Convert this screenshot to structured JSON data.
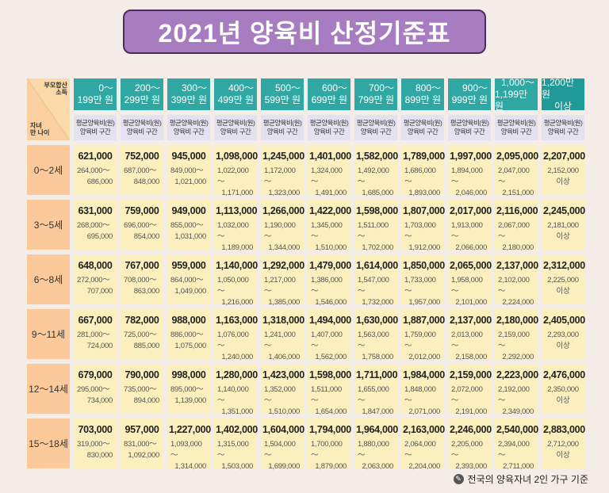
{
  "title": "2021년 양육비 산정기준표",
  "corner": {
    "top": [
      "부모합산",
      "소득"
    ],
    "bottom": [
      "자녀",
      "만 나이"
    ]
  },
  "income_brackets": [
    [
      "0～",
      "199만 원"
    ],
    [
      "200～",
      "299만 원"
    ],
    [
      "300～",
      "399만 원"
    ],
    [
      "400～",
      "499만 원"
    ],
    [
      "500～",
      "599만 원"
    ],
    [
      "600～",
      "699만 원"
    ],
    [
      "700～",
      "799만 원"
    ],
    [
      "800～",
      "899만 원"
    ],
    [
      "900～",
      "999만 원"
    ],
    [
      "1,000～",
      "1,199만 원"
    ],
    [
      "1,200만 원",
      "이상"
    ]
  ],
  "subheader": [
    "평균양육비(원)",
    "양육비 구간"
  ],
  "rows": [
    {
      "age": "0～2세",
      "cells": [
        [
          "621,000",
          "264,000～",
          "686,000"
        ],
        [
          "752,000",
          "687,000～",
          "848,000"
        ],
        [
          "945,000",
          "849,000～",
          "1,021,000"
        ],
        [
          "1,098,000",
          "1,022,000～",
          "1,171,000"
        ],
        [
          "1,245,000",
          "1,172,000～",
          "1,323,000"
        ],
        [
          "1,401,000",
          "1,324,000～",
          "1,491,000"
        ],
        [
          "1,582,000",
          "1,492,000～",
          "1,685,000"
        ],
        [
          "1,789,000",
          "1,686,000～",
          "1,893,000"
        ],
        [
          "1,997,000",
          "1,894,000～",
          "2,046,000"
        ],
        [
          "2,095,000",
          "2,047,000～",
          "2,151,000"
        ],
        [
          "2,207,000",
          "2,152,000",
          "이상"
        ]
      ]
    },
    {
      "age": "3～5세",
      "cells": [
        [
          "631,000",
          "268,000～",
          "695,000"
        ],
        [
          "759,000",
          "696,000～",
          "854,000"
        ],
        [
          "949,000",
          "855,000～",
          "1,031,000"
        ],
        [
          "1,113,000",
          "1,032,000～",
          "1,189,000"
        ],
        [
          "1,266,000",
          "1,190,000～",
          "1,344,000"
        ],
        [
          "1,422,000",
          "1,345,000～",
          "1,510,000"
        ],
        [
          "1,598,000",
          "1,511,000～",
          "1,702,000"
        ],
        [
          "1,807,000",
          "1,703,000～",
          "1,912,000"
        ],
        [
          "2,017,000",
          "1,913,000～",
          "2,066,000"
        ],
        [
          "2,116,000",
          "2,067,000～",
          "2,180,000"
        ],
        [
          "2,245,000",
          "2,181,000",
          "이상"
        ]
      ]
    },
    {
      "age": "6～8세",
      "cells": [
        [
          "648,000",
          "272,000～",
          "707,000"
        ],
        [
          "767,000",
          "708,000～",
          "863,000"
        ],
        [
          "959,000",
          "864,000～",
          "1,049,000"
        ],
        [
          "1,140,000",
          "1,050,000～",
          "1,216,000"
        ],
        [
          "1,292,000",
          "1,217,000～",
          "1,385,000"
        ],
        [
          "1,479,000",
          "1,386,000～",
          "1,546,000"
        ],
        [
          "1,614,000",
          "1,547,000～",
          "1,732,000"
        ],
        [
          "1,850,000",
          "1,733,000～",
          "1,957,000"
        ],
        [
          "2,065,000",
          "1,958,000～",
          "2,101,000"
        ],
        [
          "2,137,000",
          "2,102,000～",
          "2,224,000"
        ],
        [
          "2,312,000",
          "2,225,000",
          "이상"
        ]
      ]
    },
    {
      "age": "9～11세",
      "cells": [
        [
          "667,000",
          "281,000～",
          "724,000"
        ],
        [
          "782,000",
          "725,000～",
          "885,000"
        ],
        [
          "988,000",
          "886,000～",
          "1,075,000"
        ],
        [
          "1,163,000",
          "1,076,000～",
          "1,240,000"
        ],
        [
          "1,318,000",
          "1,241,000～",
          "1,406,000"
        ],
        [
          "1,494,000",
          "1,407,000～",
          "1,562,000"
        ],
        [
          "1,630,000",
          "1,563,000～",
          "1,758,000"
        ],
        [
          "1,887,000",
          "1,759,000～",
          "2,012,000"
        ],
        [
          "2,137,000",
          "2,013,000～",
          "2,158,000"
        ],
        [
          "2,180,000",
          "2,159,000～",
          "2,292,000"
        ],
        [
          "2,405,000",
          "2,293,000",
          "이상"
        ]
      ]
    },
    {
      "age": "12～14세",
      "cells": [
        [
          "679,000",
          "295,000～",
          "734,000"
        ],
        [
          "790,000",
          "735,000～",
          "894,000"
        ],
        [
          "998,000",
          "895,000～",
          "1,139,000"
        ],
        [
          "1,280,000",
          "1,140,000～",
          "1,351,000"
        ],
        [
          "1,423,000",
          "1,352,000～",
          "1,510,000"
        ],
        [
          "1,598,000",
          "1,511,000～",
          "1,654,000"
        ],
        [
          "1,711,000",
          "1,655,000～",
          "1,847,000"
        ],
        [
          "1,984,000",
          "1,848,000～",
          "2,071,000"
        ],
        [
          "2,159,000",
          "2,072,000～",
          "2,191,000"
        ],
        [
          "2,223,000",
          "2,192,000～",
          "2,349,000"
        ],
        [
          "2,476,000",
          "2,350,000",
          "이상"
        ]
      ]
    },
    {
      "age": "15～18세",
      "cells": [
        [
          "703,000",
          "319,000～",
          "830,000"
        ],
        [
          "957,000",
          "831,000～",
          "1,092,000"
        ],
        [
          "1,227,000",
          "1,093,000～",
          "1,314,000"
        ],
        [
          "1,402,000",
          "1,315,000～",
          "1,503,000"
        ],
        [
          "1,604,000",
          "1,504,000～",
          "1,699,000"
        ],
        [
          "1,794,000",
          "1,700,000～",
          "1,879,000"
        ],
        [
          "1,964,000",
          "1,880,000～",
          "2,063,000"
        ],
        [
          "2,163,000",
          "2,064,000～",
          "2,204,000"
        ],
        [
          "2,246,000",
          "2,205,000～",
          "2,393,000"
        ],
        [
          "2,540,000",
          "2,394,000～",
          "2,711,000"
        ],
        [
          "2,883,000",
          "2,712,000",
          "이상"
        ]
      ]
    }
  ],
  "footnote": "전국의 양육자녀 2인 가구 기준",
  "colors": {
    "title_bg": "#a77cc1",
    "header_bg": "#2fa8a4",
    "age_bg": "#fbc99a",
    "cell_bg": "#fbf0bd",
    "sub_bg": "#e4e2f0"
  }
}
